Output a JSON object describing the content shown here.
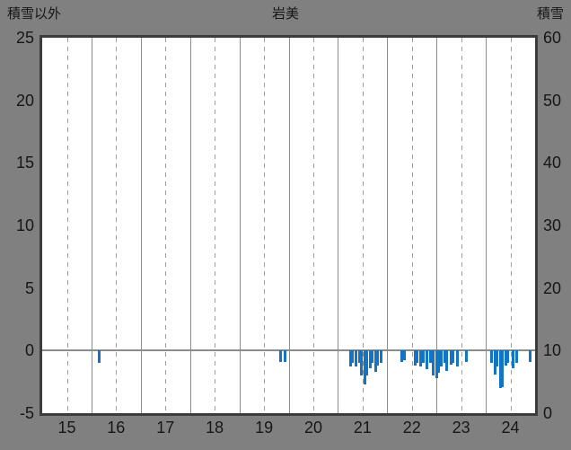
{
  "header": {
    "left_label": "積雪以外",
    "title": "岩美",
    "right_label": "積雪"
  },
  "chart_data": {
    "type": "bar",
    "title": "岩美",
    "x_axis": {
      "min": 15,
      "max": 25,
      "ticks": [
        15,
        16,
        17,
        18,
        19,
        20,
        21,
        22,
        23,
        24
      ]
    },
    "left_axis": {
      "label": "積雪以外",
      "min": -5,
      "max": 25,
      "ticks": [
        25,
        20,
        15,
        10,
        5,
        0,
        -5
      ]
    },
    "right_axis": {
      "label": "積雪",
      "min": 0,
      "max": 60,
      "ticks": [
        60,
        50,
        40,
        30,
        20,
        10,
        0
      ]
    },
    "grid": {
      "vertical_solid_at_integer_years": true,
      "vertical_dashed_at_half_years": true,
      "horizontal": false,
      "zero_line_at": 0
    },
    "legend": "none",
    "bars": [
      {
        "x": 16.15,
        "v": -1.0
      },
      {
        "x": 19.84,
        "v": -0.9
      },
      {
        "x": 19.93,
        "v": -0.9
      },
      {
        "x": 21.25,
        "v": -1.3
      },
      {
        "x": 21.3,
        "v": -1.0
      },
      {
        "x": 21.37,
        "v": -1.3
      },
      {
        "x": 21.43,
        "v": -1.0
      },
      {
        "x": 21.48,
        "v": -2.0
      },
      {
        "x": 21.54,
        "v": -2.7
      },
      {
        "x": 21.59,
        "v": -2.0
      },
      {
        "x": 21.65,
        "v": -1.4
      },
      {
        "x": 21.7,
        "v": -1.0
      },
      {
        "x": 21.76,
        "v": -1.7
      },
      {
        "x": 21.81,
        "v": -1.2
      },
      {
        "x": 21.87,
        "v": -1.0
      },
      {
        "x": 22.29,
        "v": -0.9
      },
      {
        "x": 22.34,
        "v": -0.8
      },
      {
        "x": 22.56,
        "v": -1.2
      },
      {
        "x": 22.61,
        "v": -1.0
      },
      {
        "x": 22.67,
        "v": -1.3
      },
      {
        "x": 22.74,
        "v": -1.0
      },
      {
        "x": 22.81,
        "v": -1.5
      },
      {
        "x": 22.87,
        "v": -1.0
      },
      {
        "x": 22.94,
        "v": -2.0
      },
      {
        "x": 23.0,
        "v": -2.2
      },
      {
        "x": 23.05,
        "v": -1.8
      },
      {
        "x": 23.1,
        "v": -1.3
      },
      {
        "x": 23.16,
        "v": -1.0
      },
      {
        "x": 23.21,
        "v": -1.6
      },
      {
        "x": 23.29,
        "v": -1.1
      },
      {
        "x": 23.34,
        "v": -1.0
      },
      {
        "x": 23.43,
        "v": -1.3
      },
      {
        "x": 23.6,
        "v": -0.9
      },
      {
        "x": 24.12,
        "v": -1.0
      },
      {
        "x": 24.18,
        "v": -1.9
      },
      {
        "x": 24.23,
        "v": -1.3
      },
      {
        "x": 24.29,
        "v": -3.0
      },
      {
        "x": 24.34,
        "v": -2.9
      },
      {
        "x": 24.4,
        "v": -1.2
      },
      {
        "x": 24.45,
        "v": -1.0
      },
      {
        "x": 24.56,
        "v": -1.4
      },
      {
        "x": 24.62,
        "v": -1.0
      },
      {
        "x": 24.89,
        "v": -0.9
      }
    ],
    "colors": {
      "bar": "#1474c4",
      "page_bg": "#808080",
      "plot_bg": "#ffffff",
      "border": "#3c3c3c",
      "grid_solid": "#8c8c8c",
      "grid_dashed": "#9e9e9e",
      "zero_line": "#8c8c8c",
      "text": "#161616"
    }
  }
}
